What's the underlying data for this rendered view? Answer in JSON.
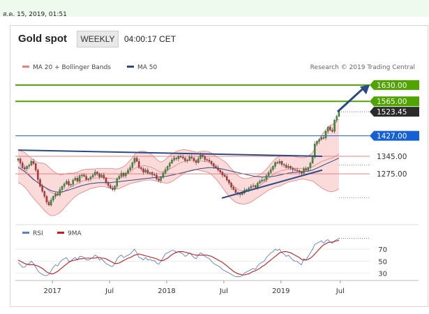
{
  "header": {
    "timestamp": "ส.ค. 15, 2019, 01:51",
    "title": "Gold spot",
    "frequency": "WEEKLY",
    "clock": "04:00:17 CET"
  },
  "legend": {
    "bollinger": "MA 20 + Bollinger Bands",
    "ma50": "MA 50",
    "credit": "Research © 2019 Trading Central",
    "rsi": "RSI",
    "rsi_ma": "9MA"
  },
  "colors": {
    "candle_green": "#2e9e2e",
    "candle_red": "#d62c2c",
    "bollinger_fill": "#f9cece",
    "bollinger_line": "#e88080",
    "ma50": "#2b4a86",
    "target_green": "#4fa400",
    "current_price": "#2b2b2b",
    "level_blue": "#1560d4",
    "trend_line": "#2b4a86",
    "rsi": "#5b7fd0",
    "rsi_ma": "#cc1a1a"
  },
  "chart_data": [
    {
      "type": "candlestick",
      "title": "Gold spot",
      "x_tick_labels": [
        "2017",
        "Jul",
        "2018",
        "Jul",
        "2019",
        "Jul"
      ],
      "ylim": [
        1080,
        1680
      ],
      "price_labels": [
        {
          "value": 1630.0,
          "label": "1630.00",
          "kind": "target"
        },
        {
          "value": 1565.0,
          "label": "1565.00",
          "kind": "target"
        },
        {
          "value": 1523.45,
          "label": "1523.45",
          "kind": "current"
        },
        {
          "value": 1427.0,
          "label": "1427.00",
          "kind": "pivot"
        },
        {
          "value": 1345.0,
          "label": "1345.00",
          "kind": "support"
        },
        {
          "value": 1275.0,
          "label": "1275.00",
          "kind": "support"
        }
      ],
      "series": [
        {
          "name": "Gold spot",
          "close": [
            1335,
            1318,
            1300,
            1295,
            1305,
            1310,
            1325,
            1316,
            1290,
            1252,
            1225,
            1205,
            1185,
            1162,
            1150,
            1170,
            1185,
            1195,
            1190,
            1212,
            1225,
            1235,
            1245,
            1230,
            1233,
            1250,
            1258,
            1245,
            1268,
            1270,
            1265,
            1252,
            1255,
            1262,
            1270,
            1282,
            1275,
            1263,
            1270,
            1258,
            1240,
            1228,
            1218,
            1212,
            1226,
            1255,
            1265,
            1278,
            1268,
            1278,
            1290,
            1300,
            1320,
            1338,
            1325,
            1300,
            1295,
            1282,
            1290,
            1278,
            1280,
            1272,
            1270,
            1255,
            1248,
            1260,
            1278,
            1292,
            1305,
            1318,
            1330,
            1338,
            1335,
            1345,
            1342,
            1338,
            1328,
            1330,
            1342,
            1338,
            1328,
            1320,
            1336,
            1350,
            1344,
            1332,
            1330,
            1325,
            1315,
            1305,
            1300,
            1290,
            1282,
            1270,
            1265,
            1250,
            1238,
            1222,
            1212,
            1200,
            1196,
            1192,
            1198,
            1210,
            1212,
            1218,
            1225,
            1228,
            1222,
            1238,
            1245,
            1250,
            1252,
            1268,
            1280,
            1292,
            1305,
            1320,
            1318,
            1325,
            1312,
            1310,
            1300,
            1305,
            1298,
            1292,
            1290,
            1288,
            1282,
            1278,
            1295,
            1290,
            1300,
            1318,
            1342,
            1395,
            1405,
            1412,
            1420,
            1418,
            1445,
            1462,
            1450,
            1445,
            1490,
            1505,
            1523
          ],
          "bollinger_upper": [
            1370,
            1368,
            1364,
            1360,
            1352,
            1345,
            1338,
            1332,
            1325,
            1320,
            1318,
            1318,
            1316,
            1310,
            1302,
            1294,
            1286,
            1280,
            1275,
            1272,
            1272,
            1274,
            1276,
            1278,
            1278,
            1278,
            1280,
            1282,
            1286,
            1290,
            1292,
            1293,
            1294,
            1294,
            1294,
            1295,
            1296,
            1296,
            1296,
            1296,
            1296,
            1296,
            1296,
            1296,
            1295,
            1295,
            1296,
            1300,
            1304,
            1310,
            1320,
            1330,
            1340,
            1352,
            1360,
            1364,
            1366,
            1366,
            1364,
            1360,
            1356,
            1350,
            1342,
            1334,
            1326,
            1322,
            1326,
            1332,
            1340,
            1348,
            1355,
            1360,
            1364,
            1368,
            1370,
            1372,
            1372,
            1370,
            1368,
            1366,
            1364,
            1362,
            1362,
            1364,
            1366,
            1366,
            1365,
            1362,
            1358,
            1352,
            1345,
            1340,
            1336,
            1330,
            1324,
            1316,
            1306,
            1296,
            1286,
            1276,
            1268,
            1262,
            1258,
            1256,
            1256,
            1258,
            1260,
            1262,
            1264,
            1268,
            1272,
            1278,
            1285,
            1294,
            1304,
            1315,
            1325,
            1335,
            1340,
            1344,
            1346,
            1346,
            1346,
            1346,
            1346,
            1345,
            1344,
            1342,
            1340,
            1340,
            1340,
            1342,
            1346,
            1352,
            1360,
            1378,
            1395,
            1412,
            1428,
            1440,
            1450,
            1460,
            1468,
            1472,
            1480,
            1488,
            1494
          ],
          "bollinger_lower": [
            1240,
            1236,
            1230,
            1222,
            1212,
            1200,
            1188,
            1178,
            1168,
            1158,
            1148,
            1138,
            1128,
            1120,
            1112,
            1108,
            1108,
            1110,
            1114,
            1120,
            1128,
            1138,
            1148,
            1158,
            1168,
            1176,
            1184,
            1190,
            1196,
            1200,
            1204,
            1208,
            1212,
            1216,
            1218,
            1220,
            1222,
            1224,
            1224,
            1224,
            1222,
            1220,
            1218,
            1216,
            1214,
            1214,
            1216,
            1220,
            1224,
            1228,
            1232,
            1236,
            1238,
            1240,
            1242,
            1244,
            1246,
            1248,
            1250,
            1250,
            1250,
            1250,
            1248,
            1246,
            1244,
            1242,
            1240,
            1238,
            1238,
            1240,
            1244,
            1250,
            1256,
            1262,
            1268,
            1274,
            1280,
            1284,
            1288,
            1290,
            1292,
            1292,
            1290,
            1288,
            1286,
            1284,
            1282,
            1278,
            1272,
            1264,
            1254,
            1244,
            1232,
            1220,
            1208,
            1196,
            1184,
            1176,
            1168,
            1162,
            1158,
            1156,
            1154,
            1154,
            1156,
            1158,
            1162,
            1168,
            1174,
            1180,
            1186,
            1192,
            1198,
            1204,
            1210,
            1214,
            1218,
            1222,
            1224,
            1226,
            1230,
            1234,
            1238,
            1242,
            1244,
            1246,
            1248,
            1250,
            1252,
            1254,
            1254,
            1252,
            1250,
            1248,
            1246,
            1240,
            1232,
            1226,
            1220,
            1214,
            1210,
            1206,
            1204,
            1204,
            1206,
            1210,
            1216
          ],
          "ma50": [
            1300,
            1296,
            1290,
            1284,
            1276,
            1268,
            1260,
            1252,
            1246,
            1240,
            1234,
            1228,
            1222,
            1217,
            1212,
            1208,
            1205,
            1203,
            1202,
            1202,
            1203,
            1205,
            1208,
            1210,
            1213,
            1216,
            1219,
            1222,
            1225,
            1228,
            1230,
            1232,
            1234,
            1236,
            1237,
            1238,
            1239,
            1240,
            1240,
            1240,
            1240,
            1240,
            1240,
            1241,
            1242,
            1243,
            1244,
            1245,
            1246,
            1247,
            1248,
            1249,
            1250,
            1251,
            1252,
            1253,
            1254,
            1255,
            1256,
            1257,
            1258,
            1259,
            1260,
            1261,
            1262,
            1263,
            1264,
            1265,
            1266,
            1268,
            1270,
            1272,
            1274,
            1276,
            1278,
            1280,
            1282,
            1284,
            1286,
            1288,
            1290,
            1292,
            1294,
            1296,
            1297,
            1298,
            1299,
            1300,
            1300,
            1299,
            1298,
            1297,
            1296,
            1294,
            1292,
            1290,
            1288,
            1286,
            1284,
            1282,
            1280,
            1278,
            1276,
            1274,
            1272,
            1270,
            1268,
            1266,
            1265,
            1264,
            1263,
            1262,
            1262,
            1262,
            1263,
            1264,
            1265,
            1266,
            1268,
            1270,
            1272,
            1274,
            1276,
            1278,
            1279,
            1280,
            1281,
            1282,
            1283,
            1283,
            1284,
            1285,
            1286,
            1288,
            1290,
            1294,
            1298,
            1302,
            1306,
            1310,
            1314,
            1318,
            1322,
            1326,
            1330,
            1334,
            1338
          ]
        }
      ]
    },
    {
      "type": "line",
      "title": "RSI",
      "x_tick_labels": [
        "2017",
        "Jul",
        "2018",
        "Jul",
        "2019",
        "Jul"
      ],
      "ylim": [
        20,
        90
      ],
      "y_ticks": [
        30,
        50,
        70
      ],
      "series": [
        {
          "name": "RSI",
          "values": [
            48,
            44,
            40,
            40,
            45,
            46,
            50,
            46,
            40,
            34,
            30,
            28,
            26,
            26,
            28,
            34,
            40,
            44,
            42,
            48,
            52,
            54,
            56,
            50,
            50,
            54,
            56,
            52,
            58,
            58,
            56,
            52,
            52,
            54,
            56,
            60,
            58,
            52,
            54,
            50,
            46,
            44,
            42,
            41,
            46,
            54,
            58,
            60,
            56,
            58,
            60,
            62,
            66,
            70,
            64,
            56,
            55,
            52,
            56,
            52,
            53,
            51,
            51,
            47,
            45,
            50,
            56,
            62,
            64,
            66,
            68,
            68,
            64,
            66,
            64,
            62,
            58,
            60,
            64,
            60,
            56,
            54,
            60,
            64,
            62,
            58,
            56,
            54,
            50,
            46,
            44,
            42,
            40,
            36,
            34,
            32,
            30,
            28,
            26,
            24,
            24,
            24,
            26,
            30,
            32,
            34,
            36,
            38,
            36,
            42,
            46,
            48,
            50,
            56,
            60,
            64,
            66,
            70,
            68,
            70,
            64,
            62,
            58,
            60,
            56,
            52,
            50,
            50,
            46,
            44,
            54,
            52,
            58,
            64,
            70,
            78,
            80,
            82,
            84,
            80,
            84,
            86,
            82,
            80,
            84,
            86,
            88
          ]
        },
        {
          "name": "9MA",
          "values": [
            52,
            50,
            48,
            46,
            45,
            44,
            44,
            44,
            43,
            42,
            40,
            38,
            35,
            32,
            30,
            29,
            29,
            31,
            33,
            36,
            39,
            42,
            45,
            48,
            50,
            51,
            52,
            53,
            54,
            54,
            55,
            55,
            55,
            55,
            55,
            55,
            56,
            56,
            55,
            55,
            54,
            52,
            50,
            48,
            46,
            46,
            47,
            49,
            51,
            53,
            55,
            56,
            58,
            60,
            61,
            62,
            61,
            60,
            59,
            58,
            57,
            56,
            55,
            54,
            52,
            51,
            51,
            53,
            55,
            58,
            61,
            63,
            65,
            66,
            66,
            66,
            65,
            64,
            63,
            62,
            61,
            60,
            60,
            60,
            60,
            60,
            60,
            59,
            58,
            56,
            54,
            52,
            50,
            48,
            45,
            42,
            39,
            36,
            33,
            31,
            29,
            28,
            27,
            27,
            28,
            29,
            31,
            33,
            34,
            36,
            38,
            41,
            43,
            46,
            49,
            52,
            55,
            58,
            61,
            64,
            65,
            66,
            66,
            65,
            64,
            62,
            60,
            58,
            56,
            53,
            52,
            52,
            53,
            55,
            58,
            62,
            66,
            70,
            74,
            77,
            79,
            81,
            82,
            82,
            83,
            84,
            85
          ]
        }
      ]
    }
  ]
}
